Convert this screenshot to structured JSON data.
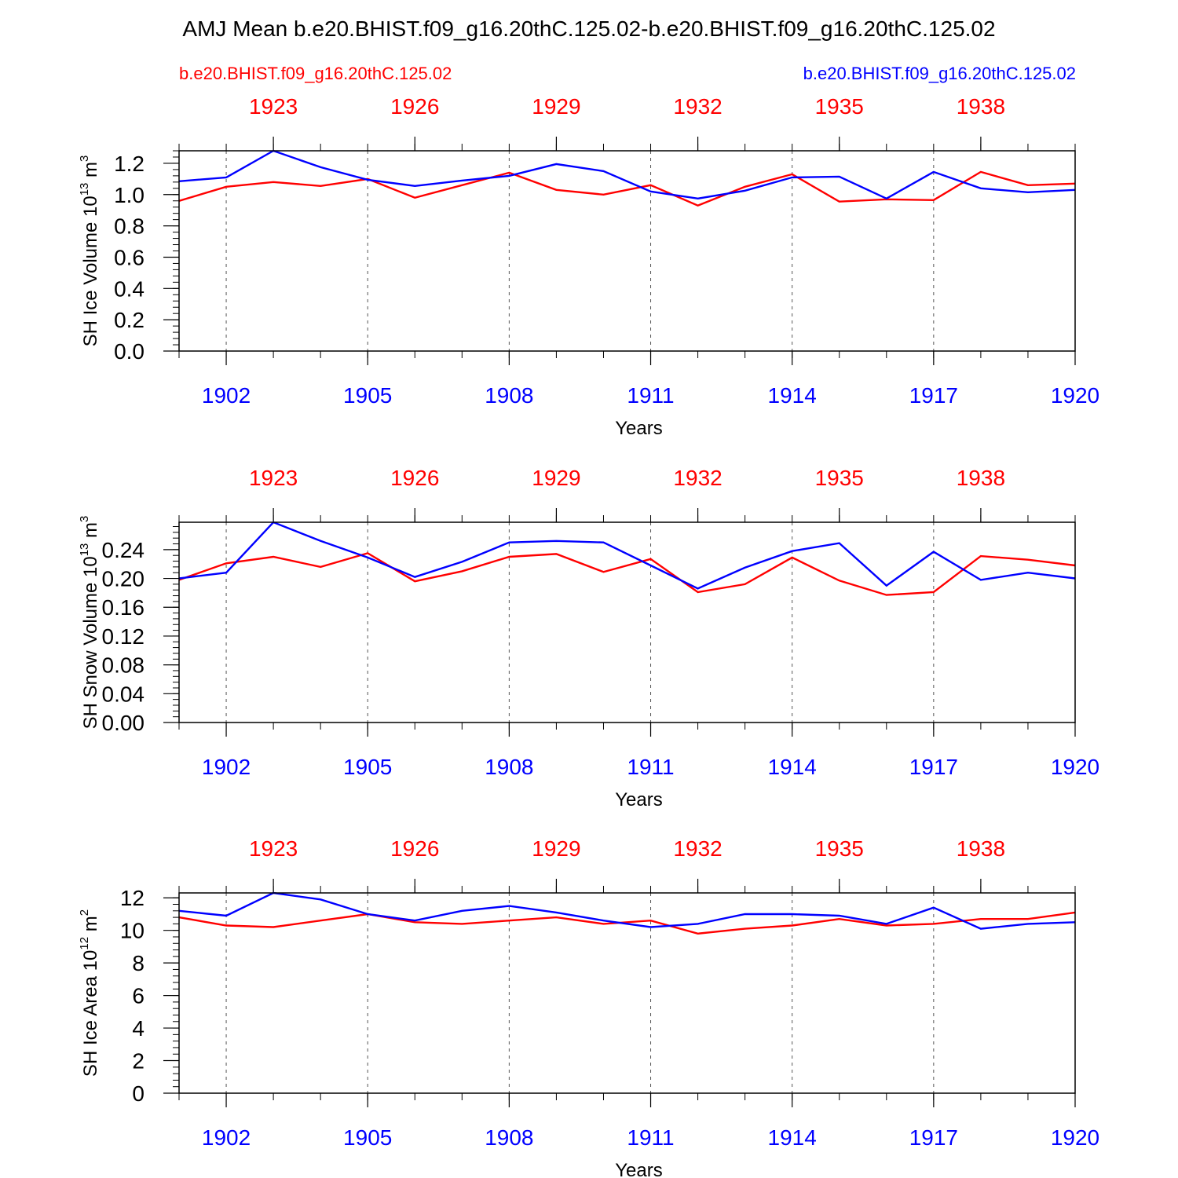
{
  "title": "AMJ Mean b.e20.BHIST.f09_g16.20thC.125.02-b.e20.BHIST.f09_g16.20thC.125.02",
  "left_subtitle": "b.e20.BHIST.f09_g16.20thC.125.02",
  "right_subtitle": "b.e20.BHIST.f09_g16.20thC.125.02",
  "colors": {
    "red": "#ff0000",
    "blue": "#0000ff",
    "black": "#000000"
  },
  "chart_data": [
    {
      "type": "line",
      "title": "",
      "xlabel": "Years",
      "ylabel": "SH Ice Volume 10",
      "ylabel_exp": "13",
      "ylabel_unit": " m",
      "ylabel_unit_exp": "3",
      "ylim": [
        0,
        1.28
      ],
      "yticks": [
        "0.0",
        "0.2",
        "0.4",
        "0.6",
        "0.8",
        "1.0",
        "1.2"
      ],
      "yticks_values": [
        0,
        0.2,
        0.4,
        0.6,
        0.8,
        1.0,
        1.2
      ],
      "bottom_x": [
        1901,
        1902,
        1903,
        1904,
        1905,
        1906,
        1907,
        1908,
        1909,
        1910,
        1911,
        1912,
        1913,
        1914,
        1915,
        1916,
        1917,
        1918,
        1919,
        1920
      ],
      "bottom_ticks": [
        "1902",
        "1905",
        "1908",
        "1911",
        "1914",
        "1917",
        "1920"
      ],
      "bottom_tick_values": [
        1902,
        1905,
        1908,
        1911,
        1914,
        1917,
        1920
      ],
      "top_ticks": [
        "1923",
        "1926",
        "1929",
        "1932",
        "1935",
        "1938"
      ],
      "top_tick_values": [
        1923,
        1926,
        1929,
        1932,
        1935,
        1938
      ],
      "series": [
        {
          "name": "b.e20.BHIST.f09_g16.20thC.125.02 (red)",
          "color": "#ff0000",
          "axis": "top",
          "x": [
            1921,
            1922,
            1923,
            1924,
            1925,
            1926,
            1927,
            1928,
            1929,
            1930,
            1931,
            1932,
            1933,
            1934,
            1935,
            1936,
            1937,
            1938,
            1939,
            1940
          ],
          "values": [
            0.96,
            1.05,
            1.08,
            1.055,
            1.1,
            0.98,
            1.06,
            1.14,
            1.03,
            1.0,
            1.06,
            0.93,
            1.05,
            1.13,
            0.955,
            0.97,
            0.965,
            1.145,
            1.06,
            1.07
          ]
        },
        {
          "name": "b.e20.BHIST.f09_g16.20thC.125.02 (blue)",
          "color": "#0000ff",
          "axis": "bottom",
          "x": [
            1901,
            1902,
            1903,
            1904,
            1905,
            1906,
            1907,
            1908,
            1909,
            1910,
            1911,
            1912,
            1913,
            1914,
            1915,
            1916,
            1917,
            1918,
            1919,
            1920
          ],
          "values": [
            1.085,
            1.11,
            1.28,
            1.175,
            1.095,
            1.055,
            1.09,
            1.12,
            1.195,
            1.15,
            1.02,
            0.975,
            1.025,
            1.11,
            1.115,
            0.975,
            1.145,
            1.04,
            1.015,
            1.03
          ]
        }
      ]
    },
    {
      "type": "line",
      "title": "",
      "xlabel": "Years",
      "ylabel": "SH Snow Volume 10",
      "ylabel_exp": "13",
      "ylabel_unit": " m",
      "ylabel_unit_exp": "3",
      "ylim": [
        0,
        0.278
      ],
      "yticks": [
        "0.00",
        "0.04",
        "0.08",
        "0.12",
        "0.16",
        "0.20",
        "0.24"
      ],
      "yticks_values": [
        0,
        0.04,
        0.08,
        0.12,
        0.16,
        0.2,
        0.24
      ],
      "bottom_x": [
        1901,
        1902,
        1903,
        1904,
        1905,
        1906,
        1907,
        1908,
        1909,
        1910,
        1911,
        1912,
        1913,
        1914,
        1915,
        1916,
        1917,
        1918,
        1919,
        1920
      ],
      "bottom_ticks": [
        "1902",
        "1905",
        "1908",
        "1911",
        "1914",
        "1917",
        "1920"
      ],
      "bottom_tick_values": [
        1902,
        1905,
        1908,
        1911,
        1914,
        1917,
        1920
      ],
      "top_ticks": [
        "1923",
        "1926",
        "1929",
        "1932",
        "1935",
        "1938"
      ],
      "top_tick_values": [
        1923,
        1926,
        1929,
        1932,
        1935,
        1938
      ],
      "series": [
        {
          "name": "b.e20.BHIST.f09_g16.20thC.125.02 (red)",
          "color": "#ff0000",
          "axis": "top",
          "x": [
            1921,
            1922,
            1923,
            1924,
            1925,
            1926,
            1927,
            1928,
            1929,
            1930,
            1931,
            1932,
            1933,
            1934,
            1935,
            1936,
            1937,
            1938,
            1939,
            1940
          ],
          "values": [
            0.198,
            0.221,
            0.23,
            0.216,
            0.235,
            0.196,
            0.21,
            0.23,
            0.234,
            0.209,
            0.227,
            0.181,
            0.192,
            0.229,
            0.197,
            0.177,
            0.181,
            0.231,
            0.226,
            0.218
          ]
        },
        {
          "name": "b.e20.BHIST.f09_g16.20thC.125.02 (blue)",
          "color": "#0000ff",
          "axis": "bottom",
          "x": [
            1901,
            1902,
            1903,
            1904,
            1905,
            1906,
            1907,
            1908,
            1909,
            1910,
            1911,
            1912,
            1913,
            1914,
            1915,
            1916,
            1917,
            1918,
            1919,
            1920
          ],
          "values": [
            0.2,
            0.208,
            0.278,
            0.252,
            0.229,
            0.202,
            0.223,
            0.25,
            0.252,
            0.25,
            0.218,
            0.186,
            0.215,
            0.238,
            0.249,
            0.19,
            0.237,
            0.198,
            0.208,
            0.2
          ]
        }
      ]
    },
    {
      "type": "line",
      "title": "",
      "xlabel": "Years",
      "ylabel": "SH Ice Area 10",
      "ylabel_exp": "12",
      "ylabel_unit": " m",
      "ylabel_unit_exp": "2",
      "ylim": [
        0,
        12.3
      ],
      "yticks": [
        "0",
        "2",
        "4",
        "6",
        "8",
        "10",
        "12"
      ],
      "yticks_values": [
        0,
        2,
        4,
        6,
        8,
        10,
        12
      ],
      "bottom_x": [
        1901,
        1902,
        1903,
        1904,
        1905,
        1906,
        1907,
        1908,
        1909,
        1910,
        1911,
        1912,
        1913,
        1914,
        1915,
        1916,
        1917,
        1918,
        1919,
        1920
      ],
      "bottom_ticks": [
        "1902",
        "1905",
        "1908",
        "1911",
        "1914",
        "1917",
        "1920"
      ],
      "bottom_tick_values": [
        1902,
        1905,
        1908,
        1911,
        1914,
        1917,
        1920
      ],
      "top_ticks": [
        "1923",
        "1926",
        "1929",
        "1932",
        "1935",
        "1938"
      ],
      "top_tick_values": [
        1923,
        1926,
        1929,
        1932,
        1935,
        1938
      ],
      "series": [
        {
          "name": "b.e20.BHIST.f09_g16.20thC.125.02 (red)",
          "color": "#ff0000",
          "axis": "top",
          "x": [
            1921,
            1922,
            1923,
            1924,
            1925,
            1926,
            1927,
            1928,
            1929,
            1930,
            1931,
            1932,
            1933,
            1934,
            1935,
            1936,
            1937,
            1938,
            1939,
            1940
          ],
          "values": [
            10.8,
            10.3,
            10.2,
            10.6,
            11.0,
            10.5,
            10.4,
            10.6,
            10.8,
            10.4,
            10.6,
            9.8,
            10.1,
            10.3,
            10.7,
            10.3,
            10.4,
            10.7,
            10.7,
            11.1
          ]
        },
        {
          "name": "b.e20.BHIST.f09_g16.20thC.125.02 (blue)",
          "color": "#0000ff",
          "axis": "bottom",
          "x": [
            1901,
            1902,
            1903,
            1904,
            1905,
            1906,
            1907,
            1908,
            1909,
            1910,
            1911,
            1912,
            1913,
            1914,
            1915,
            1916,
            1917,
            1918,
            1919,
            1920
          ],
          "values": [
            11.2,
            10.9,
            12.3,
            11.9,
            11.0,
            10.6,
            11.2,
            11.5,
            11.1,
            10.6,
            10.2,
            10.4,
            11.0,
            11.0,
            10.9,
            10.4,
            11.4,
            10.1,
            10.4,
            10.5
          ]
        }
      ]
    }
  ]
}
